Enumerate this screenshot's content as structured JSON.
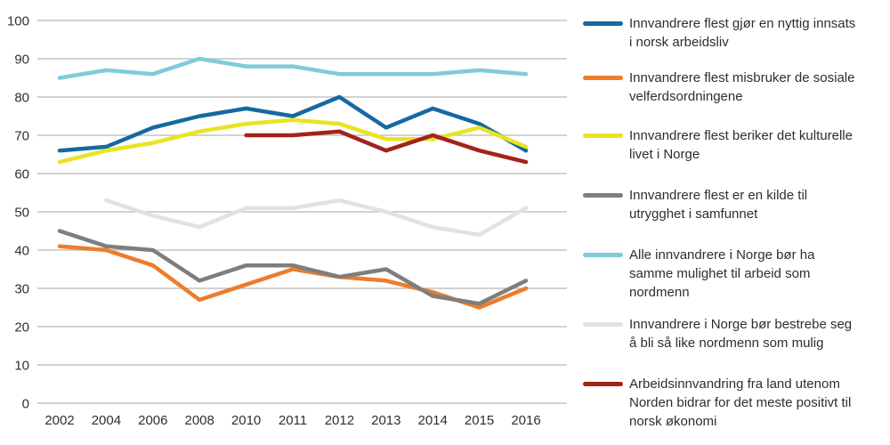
{
  "chart_data": {
    "type": "line",
    "title": "",
    "xlabel": "",
    "ylabel": "",
    "categories": [
      "2002",
      "2004",
      "2006",
      "2008",
      "2010",
      "2011",
      "2012",
      "2013",
      "2014",
      "2015",
      "2016"
    ],
    "yticks": [
      0,
      10,
      20,
      30,
      40,
      50,
      60,
      70,
      80,
      90,
      100
    ],
    "ylim": [
      0,
      100
    ],
    "grid": true,
    "grid_color": "#c4c4c4",
    "legend_position": "right",
    "series": [
      {
        "label": "Innvandrere flest gjør en nyttig innsats\ni norsk arbeidsliv",
        "color": "#1668a2",
        "values": [
          66,
          67,
          72,
          75,
          77,
          75,
          80,
          72,
          77,
          73,
          66
        ]
      },
      {
        "label": "Innvandrere flest misbruker de sosiale\nvelferdsordningene",
        "color": "#ed7d2b",
        "values": [
          41,
          40,
          36,
          27,
          31,
          35,
          33,
          32,
          29,
          25,
          30
        ]
      },
      {
        "label": "Innvandrere flest beriker det kulturelle\nlivet i Norge",
        "color": "#e9e423",
        "values": [
          63,
          66,
          68,
          71,
          73,
          74,
          73,
          69,
          69,
          72,
          67
        ]
      },
      {
        "label": "Innvandrere flest er en kilde til\nutrygghet i samfunnet",
        "color": "#7e7e7e",
        "values": [
          45,
          41,
          40,
          32,
          36,
          36,
          33,
          35,
          28,
          26,
          32
        ]
      },
      {
        "label": "Alle innvandrere i Norge bør ha\nsamme mulighet til arbeid som\nnordmenn",
        "color": "#7fcbd9",
        "values": [
          85,
          87,
          86,
          90,
          88,
          88,
          86,
          86,
          86,
          87,
          86
        ]
      },
      {
        "label": "Innvandrere i Norge bør bestrebe seg\nå bli så like nordmenn som mulig",
        "color": "#e2e2e2",
        "values": [
          null,
          53,
          49,
          46,
          51,
          51,
          53,
          50,
          46,
          44,
          51
        ]
      },
      {
        "label": "Arbeidsinnvandring fra land utenom\nNorden bidrar for det meste positivt til\nnorsk økonomi",
        "color": "#a3231a",
        "values": [
          null,
          null,
          null,
          null,
          70,
          70,
          71,
          66,
          70,
          66,
          63
        ]
      }
    ]
  }
}
